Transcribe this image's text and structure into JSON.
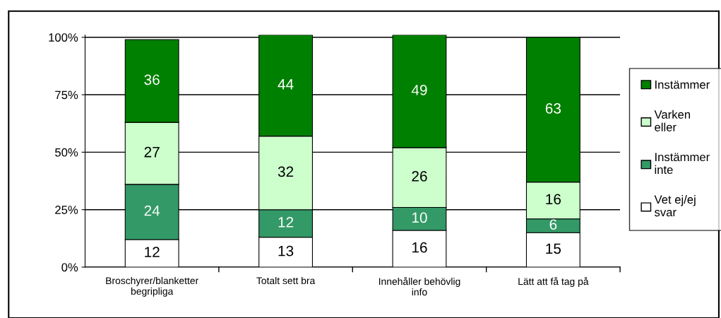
{
  "chart_data": {
    "type": "bar",
    "stacked": true,
    "categories": [
      "Broschyrer/blanketter\nbegripliga",
      "Totalt sett bra",
      "Innehåller behövlig\ninfo",
      "Lätt att få tag på"
    ],
    "series": [
      {
        "name": "Vet ej/ej\nsvar",
        "color": "#ffffff",
        "values": [
          12,
          13,
          16,
          15
        ]
      },
      {
        "name": "Instämmer\ninte",
        "color": "#339966",
        "values": [
          24,
          12,
          10,
          6
        ]
      },
      {
        "name": "Varken\neller",
        "color": "#ccffcc",
        "values": [
          27,
          32,
          26,
          16
        ]
      },
      {
        "name": "Instämmer",
        "color": "#008000",
        "values": [
          36,
          44,
          49,
          63
        ]
      }
    ],
    "ylim": [
      0,
      101
    ],
    "yticks": [
      {
        "value": 0,
        "label": "0%"
      },
      {
        "value": 25,
        "label": "25%"
      },
      {
        "value": 50,
        "label": "50%"
      },
      {
        "value": 75,
        "label": "75%"
      },
      {
        "value": 100,
        "label": "100%"
      }
    ],
    "grid": "y",
    "legend": "right",
    "data_labels": true
  }
}
